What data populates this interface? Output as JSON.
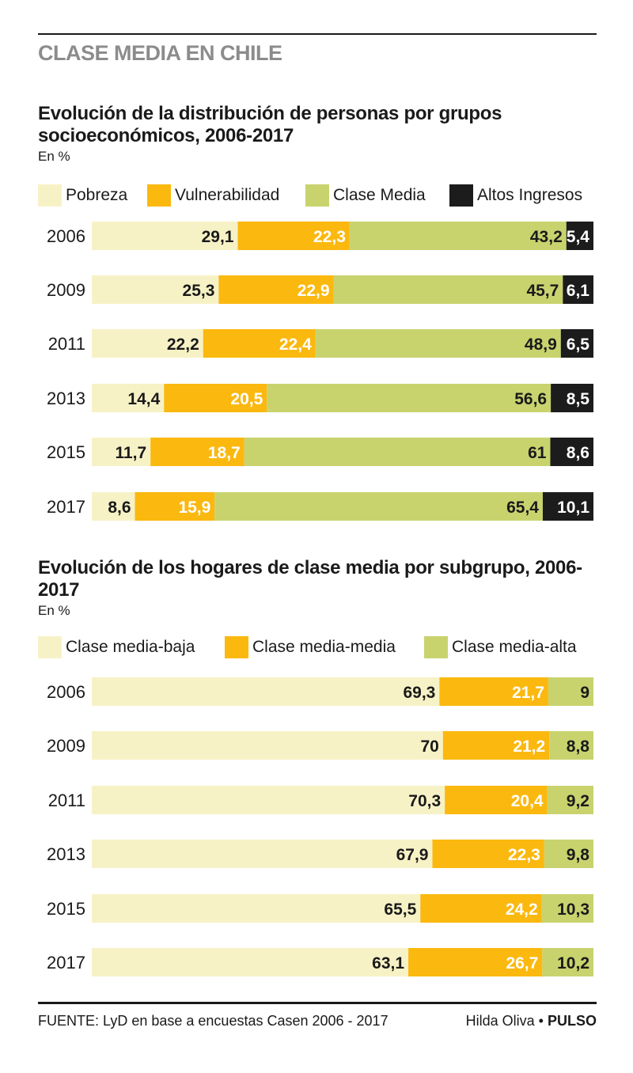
{
  "header": {
    "kicker": "CLASE MEDIA EN CHILE"
  },
  "colors": {
    "pobreza": "#f7f2c6",
    "vulnerabilidad": "#fbb80f",
    "clase_media": "#c8d36e",
    "altos_ingresos": "#1c1c1c",
    "text_dark": "#1a1a1a",
    "text_light": "#ffffff"
  },
  "footer": {
    "source": "FUENTE: LyD en base a encuestas Casen 2006 - 2017",
    "author": "Hilda Oliva",
    "separator": "•",
    "brand": "PULSO"
  },
  "chart_data": [
    {
      "type": "bar",
      "stacked": true,
      "orientation": "horizontal",
      "title": "Evolución de la distribución de personas por grupos socioeconómicos, 2006-2017",
      "unit": "En %",
      "legend_position": "top",
      "categories": [
        "2006",
        "2009",
        "2011",
        "2013",
        "2015",
        "2017"
      ],
      "series": [
        {
          "name": "Pobreza",
          "color": "#f7f2c6",
          "label_color": "#1a1a1a",
          "values": [
            "29,1",
            "25,3",
            "22,2",
            "14,4",
            "11,7",
            "8,6"
          ]
        },
        {
          "name": "Vulnerabilidad",
          "color": "#fbb80f",
          "label_color": "#ffffff",
          "values": [
            "22,3",
            "22,9",
            "22,4",
            "20,5",
            "18,7",
            "15,9"
          ]
        },
        {
          "name": "Clase Media",
          "color": "#c8d36e",
          "label_color": "#1a1a1a",
          "values": [
            "43,2",
            "45,7",
            "48,9",
            "56,6",
            "61",
            "65,4"
          ]
        },
        {
          "name": "Altos Ingresos",
          "color": "#1c1c1c",
          "label_color": "#ffffff",
          "values": [
            "5,4",
            "6,1",
            "6,5",
            "8,5",
            "8,6",
            "10,1"
          ]
        }
      ]
    },
    {
      "type": "bar",
      "stacked": true,
      "orientation": "horizontal",
      "title": "Evolución de los hogares de clase media por subgrupo, 2006-2017",
      "unit": "En %",
      "legend_position": "top",
      "categories": [
        "2006",
        "2009",
        "2011",
        "2013",
        "2015",
        "2017"
      ],
      "series": [
        {
          "name": "Clase media-baja",
          "color": "#f7f2c6",
          "label_color": "#1a1a1a",
          "values": [
            "69,3",
            "70",
            "70,3",
            "67,9",
            "65,5",
            "63,1"
          ]
        },
        {
          "name": "Clase media-media",
          "color": "#fbb80f",
          "label_color": "#ffffff",
          "values": [
            "21,7",
            "21,2",
            "20,4",
            "22,3",
            "24,2",
            "26,7"
          ]
        },
        {
          "name": "Clase media-alta",
          "color": "#c8d36e",
          "label_color": "#1a1a1a",
          "values": [
            "9",
            "8,8",
            "9,2",
            "9,8",
            "10,3",
            "10,2"
          ]
        }
      ]
    }
  ]
}
